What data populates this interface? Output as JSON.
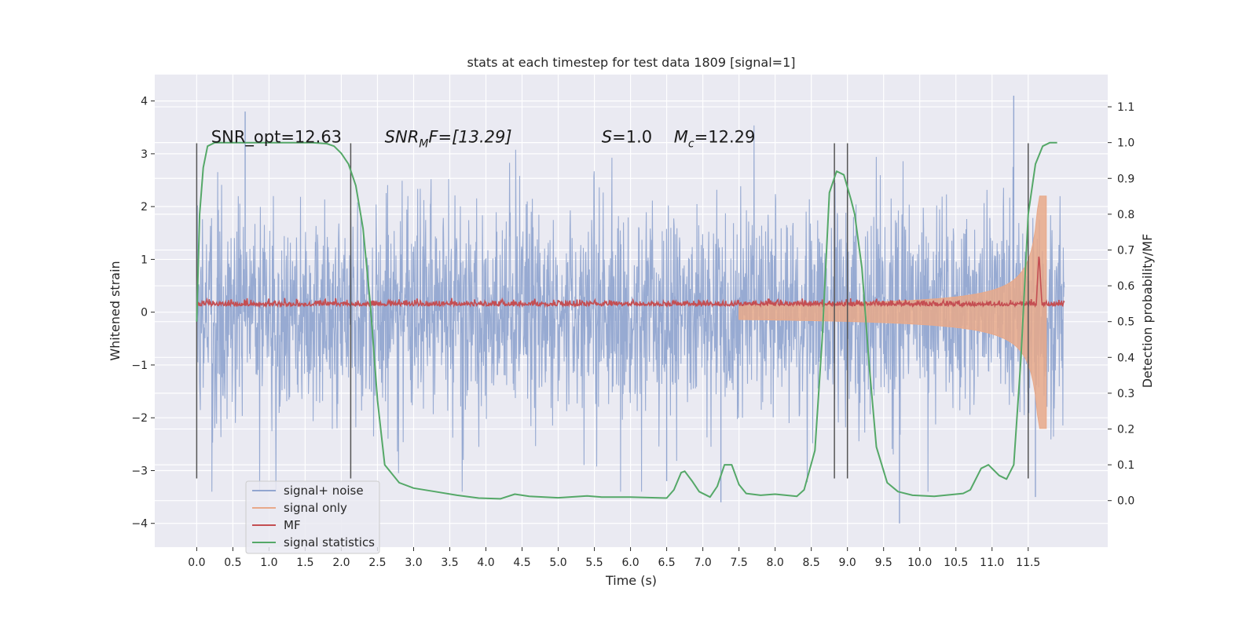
{
  "chart_data": {
    "type": "line",
    "title": "stats at each timestep for test data 1809 [signal=1]",
    "xlabel": "Time (s)",
    "ylabel_left": "Whitened strain",
    "ylabel_right": "Detection probability/MF",
    "xlim": [
      -0.58,
      12.6
    ],
    "ylim_left": [
      -4.45,
      4.5
    ],
    "ylim_right": [
      -0.13,
      1.19
    ],
    "x_ticks": [
      "0.0",
      "0.5",
      "1.0",
      "1.5",
      "2.0",
      "2.5",
      "3.0",
      "3.5",
      "4.0",
      "4.5",
      "5.0",
      "5.5",
      "6.0",
      "6.5",
      "7.0",
      "7.5",
      "8.0",
      "8.5",
      "9.0",
      "9.5",
      "10.0",
      "10.5",
      "11.0",
      "11.5"
    ],
    "y_ticks_left": [
      "4",
      "3",
      "2",
      "1",
      "0",
      "−1",
      "−2",
      "−3",
      "−4"
    ],
    "y_ticks_right": [
      "1.1",
      "1.0",
      "0.9",
      "0.8",
      "0.7",
      "0.6",
      "0.5",
      "0.4",
      "0.3",
      "0.2",
      "0.1",
      "0.0"
    ],
    "grid": true,
    "background": "#eaeaf2",
    "annotations": [
      {
        "text": "SNR_opt=12.63",
        "x": 0.2,
        "y": 3.2
      },
      {
        "text": "SNR",
        "sub": "M",
        "tail": "F=[13.29]",
        "x": 2.6,
        "y": 3.2,
        "italic_base": true
      },
      {
        "text": "S",
        "tail": "=1.0",
        "x": 5.6,
        "y": 3.2,
        "italic_base": true
      },
      {
        "text": "M",
        "sub": "c",
        "tail": "=12.29",
        "x": 6.6,
        "y": 3.2,
        "italic_base": true
      }
    ],
    "vertical_lines_x": [
      0.0,
      2.13,
      8.82,
      9.0,
      11.5
    ],
    "vertical_lines_range": [
      -3.15,
      3.2
    ],
    "legend": {
      "position": "lower-left",
      "entries": [
        {
          "label": "signal+ noise",
          "color": "#92a6d0"
        },
        {
          "label": "signal only",
          "color": "#e8a98a"
        },
        {
          "label": "MF",
          "color": "#c44e52"
        },
        {
          "label": "signal statistics",
          "color": "#55a868"
        }
      ]
    },
    "series": [
      {
        "name": "signal+ noise",
        "axis": "left",
        "color": "#92a6d0",
        "kind": "noise",
        "x_range": [
          0.0,
          12.0
        ],
        "amplitude": 2.3,
        "peak_max": 4.1,
        "peak_min": -4.0
      },
      {
        "name": "signal only",
        "axis": "left",
        "color": "#e8a98a",
        "kind": "chirp",
        "x_range": [
          7.5,
          11.75
        ],
        "envelope_end": 2.2,
        "merger_time": 11.7
      },
      {
        "name": "MF",
        "axis": "left",
        "color": "#c44e52",
        "kind": "mf",
        "x_range": [
          0.0,
          12.0
        ],
        "base": 0.12,
        "jitter": 0.05,
        "peak": 1.0
      },
      {
        "name": "signal statistics",
        "axis": "right",
        "color": "#55a868",
        "kind": "curve",
        "x": [
          0.0,
          0.04,
          0.09,
          0.15,
          0.25,
          0.4,
          0.8,
          1.2,
          1.6,
          1.8,
          1.9,
          2.0,
          2.1,
          2.2,
          2.3,
          2.4,
          2.5,
          2.6,
          2.8,
          3.0,
          3.3,
          3.6,
          3.9,
          4.2,
          4.4,
          4.6,
          5.0,
          5.4,
          5.6,
          6.0,
          6.5,
          6.6,
          6.7,
          6.75,
          6.85,
          6.95,
          7.1,
          7.2,
          7.3,
          7.4,
          7.5,
          7.6,
          7.8,
          8.0,
          8.3,
          8.4,
          8.55,
          8.65,
          8.75,
          8.85,
          8.95,
          9.05,
          9.1,
          9.2,
          9.3,
          9.4,
          9.55,
          9.7,
          9.9,
          10.2,
          10.6,
          10.7,
          10.85,
          10.95,
          11.1,
          11.2,
          11.3,
          11.4,
          11.5,
          11.6,
          11.7,
          11.8,
          11.9
        ],
        "y": [
          0.5,
          0.8,
          0.93,
          0.99,
          1.0,
          1.0,
          1.0,
          1.0,
          1.0,
          0.997,
          0.99,
          0.97,
          0.94,
          0.88,
          0.76,
          0.55,
          0.28,
          0.1,
          0.05,
          0.035,
          0.025,
          0.015,
          0.007,
          0.005,
          0.018,
          0.012,
          0.008,
          0.013,
          0.01,
          0.01,
          0.007,
          0.03,
          0.078,
          0.082,
          0.055,
          0.025,
          0.01,
          0.04,
          0.1,
          0.1,
          0.045,
          0.02,
          0.015,
          0.018,
          0.012,
          0.03,
          0.14,
          0.45,
          0.86,
          0.92,
          0.91,
          0.84,
          0.8,
          0.65,
          0.38,
          0.15,
          0.05,
          0.025,
          0.015,
          0.012,
          0.02,
          0.03,
          0.09,
          0.1,
          0.07,
          0.06,
          0.1,
          0.4,
          0.8,
          0.94,
          0.99,
          1.0,
          1.0
        ]
      }
    ]
  }
}
